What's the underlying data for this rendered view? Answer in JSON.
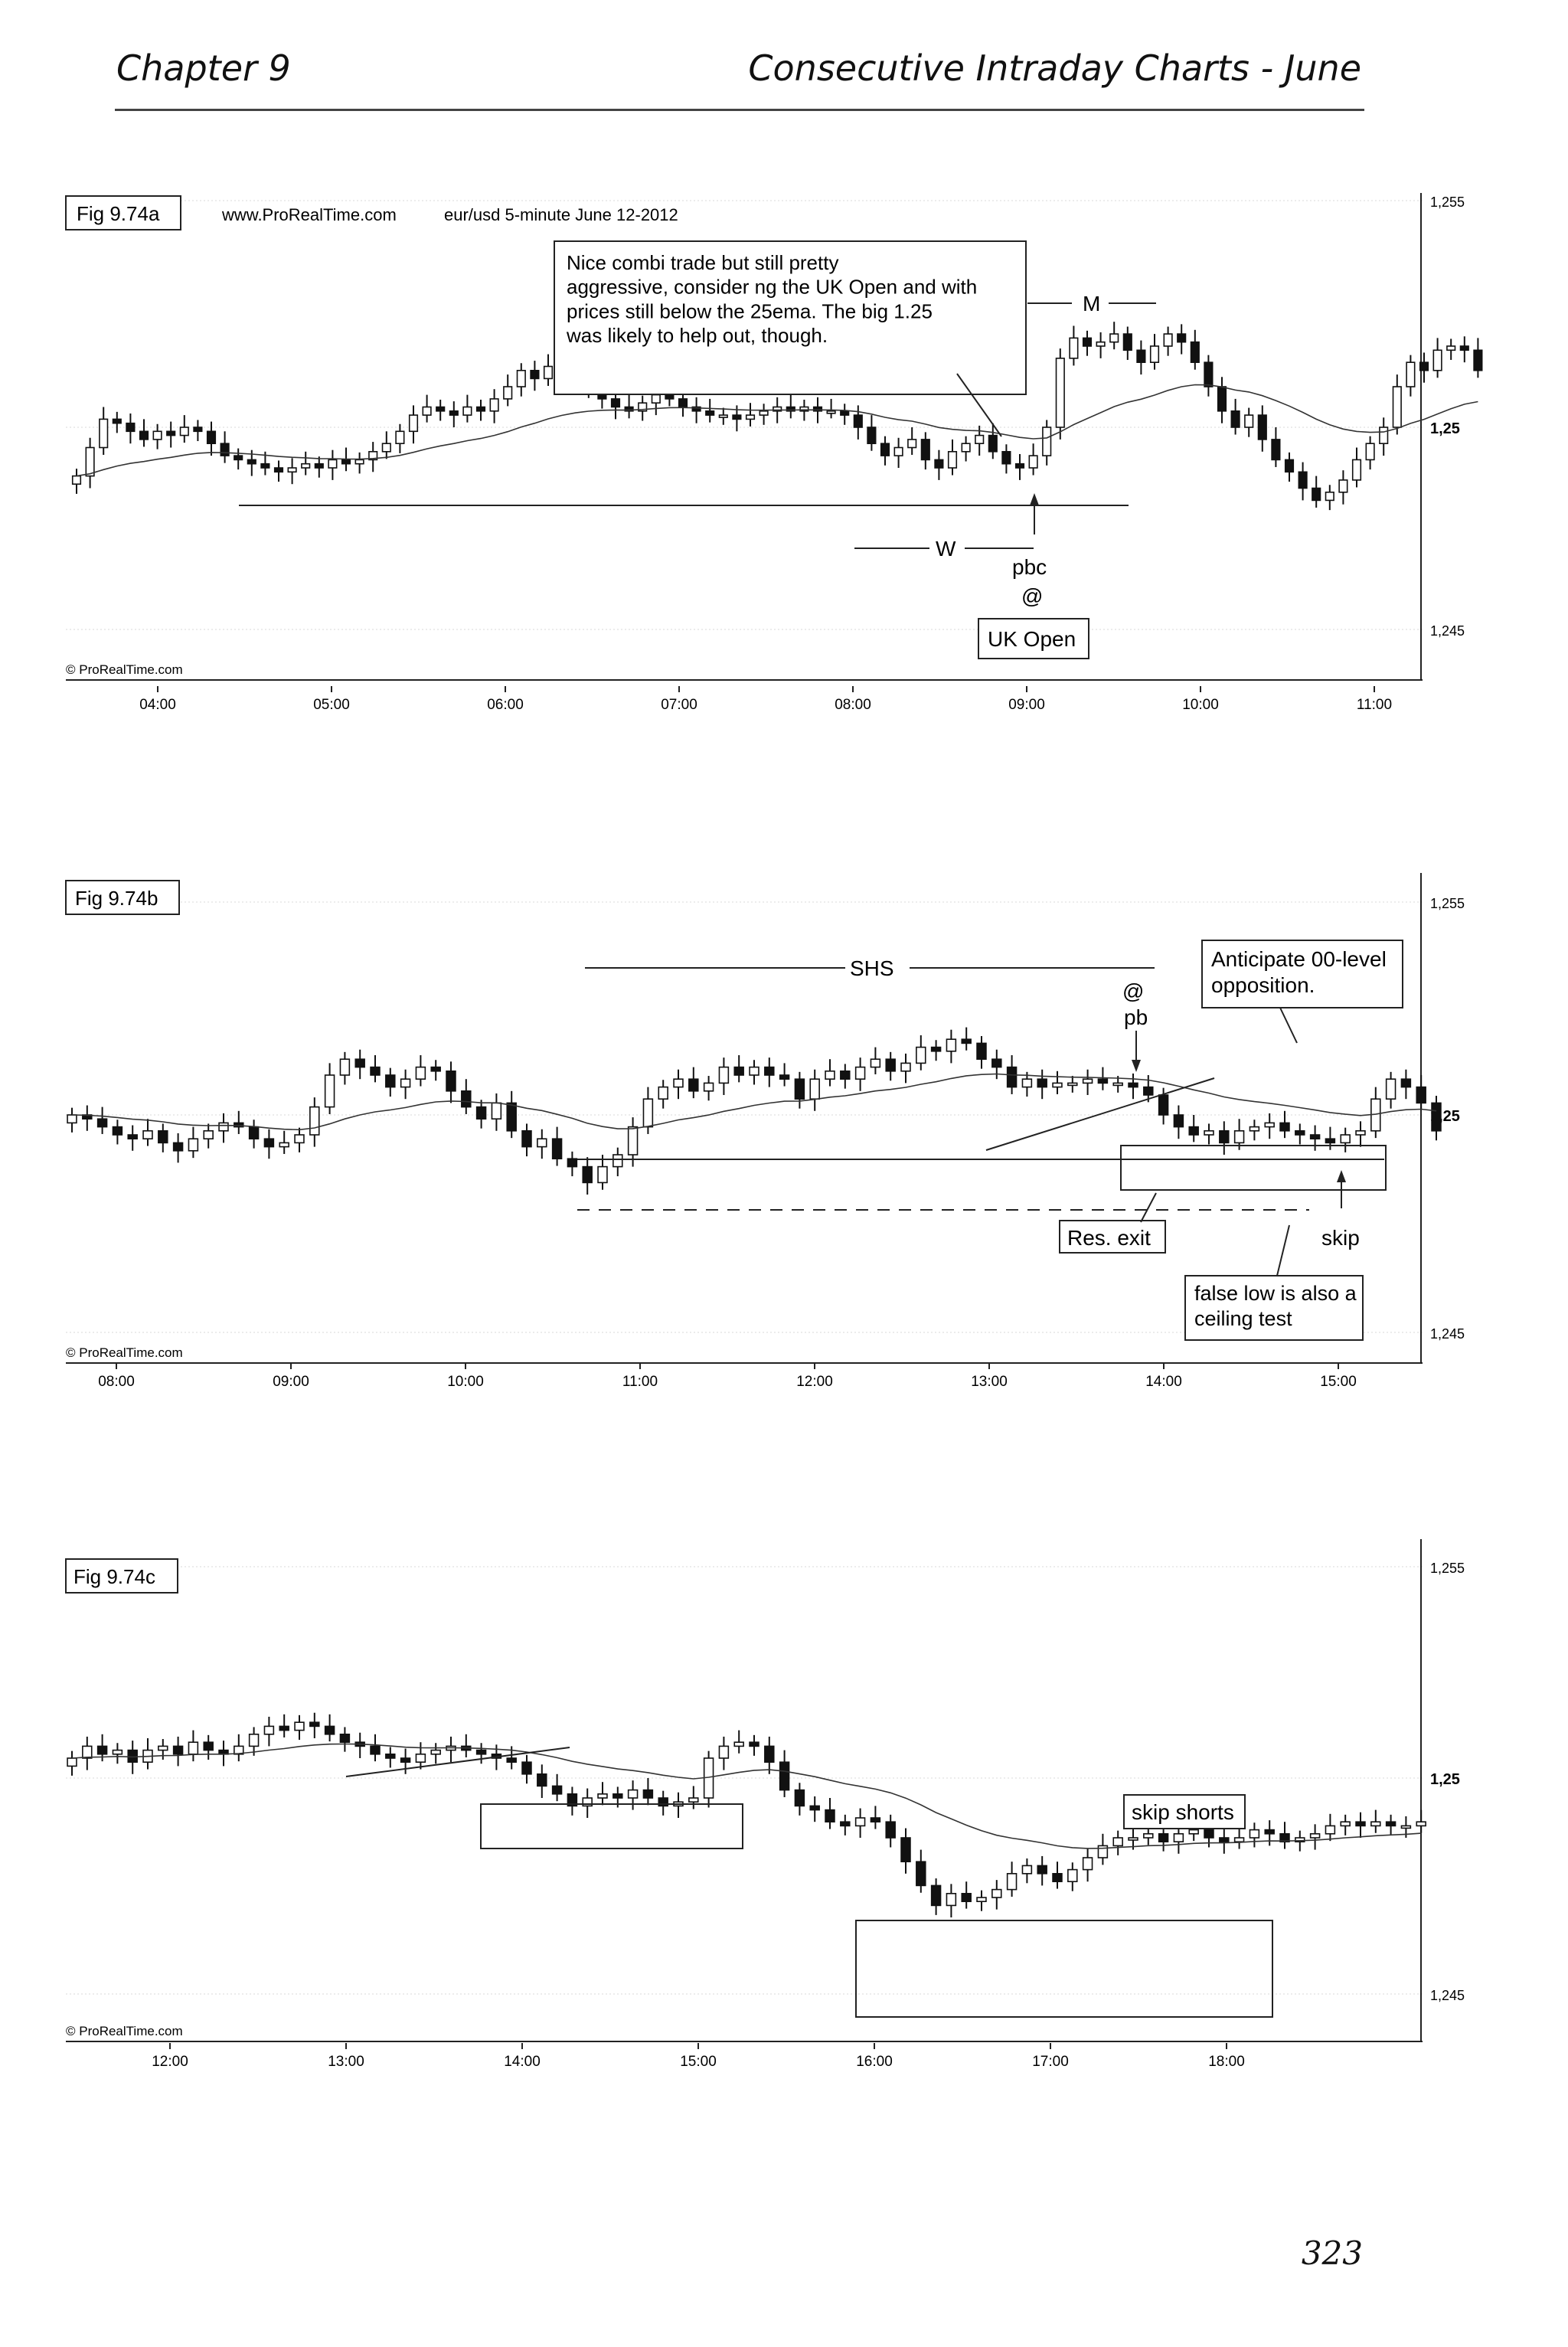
{
  "header": {
    "chapter": "Chapter 9",
    "title": "Consecutive Intraday Charts - June"
  },
  "page_number": "323",
  "chart_data": [
    {
      "type": "candlestick",
      "figure_label": "Fig 9.74a",
      "source": "www.ProRealTime.com",
      "subtitle": "eur/usd  5-minute  June 12-2012",
      "copyright": "© ProRealTime.com",
      "x_ticks": [
        "04:00",
        "05:00",
        "06:00",
        "07:00",
        "08:00",
        "09:00",
        "10:00",
        "11:00"
      ],
      "y_ticks": [
        "1,255",
        "1,25",
        "1,245"
      ],
      "ylim": [
        1.245,
        1.255
      ],
      "ema": "25ema",
      "closes": [
        1.2488,
        1.2495,
        1.2502,
        1.2501,
        1.2499,
        1.2497,
        1.2499,
        1.2498,
        1.25,
        1.2499,
        1.2496,
        1.2493,
        1.2492,
        1.2491,
        1.249,
        1.2489,
        1.249,
        1.2491,
        1.249,
        1.2492,
        1.2491,
        1.2492,
        1.2494,
        1.2496,
        1.2499,
        1.2503,
        1.2505,
        1.2504,
        1.2503,
        1.2505,
        1.2504,
        1.2507,
        1.251,
        1.2514,
        1.2512,
        1.2515,
        1.2513,
        1.2511,
        1.2509,
        1.2507,
        1.2505,
        1.2504,
        1.2506,
        1.2508,
        1.2507,
        1.2505,
        1.2504,
        1.2503,
        1.2503,
        1.2502,
        1.2503,
        1.2504,
        1.2505,
        1.2504,
        1.2505,
        1.2504,
        1.2504,
        1.2503,
        1.25,
        1.2496,
        1.2493,
        1.2495,
        1.2497,
        1.2492,
        1.249,
        1.2494,
        1.2496,
        1.2498,
        1.2494,
        1.2491,
        1.249,
        1.2493,
        1.25,
        1.2517,
        1.2522,
        1.252,
        1.2521,
        1.2523,
        1.2519,
        1.2516,
        1.252,
        1.2523,
        1.2521,
        1.2516,
        1.251,
        1.2504,
        1.25,
        1.2503,
        1.2497,
        1.2492,
        1.2489,
        1.2485,
        1.2482,
        1.2484,
        1.2487,
        1.2492,
        1.2496,
        1.25,
        1.251,
        1.2516,
        1.2514,
        1.2519,
        1.252,
        1.2519,
        1.2514
      ],
      "annotations": [
        "Nice combi trade but still pretty aggressive, consider ng the UK Open and with prices still below the 25ema. The big 1.25 was likely to help out, though.",
        "M",
        "W",
        "pbc",
        "@",
        "UK Open"
      ]
    },
    {
      "type": "candlestick",
      "figure_label": "Fig 9.74b",
      "copyright": "© ProRealTime.com",
      "x_ticks": [
        "08:00",
        "09:00",
        "10:00",
        "11:00",
        "12:00",
        "13:00",
        "14:00",
        "15:00"
      ],
      "y_ticks": [
        "1,255",
        "1,25",
        "1,245"
      ],
      "ylim": [
        1.245,
        1.255
      ],
      "closes": [
        1.25,
        1.2499,
        1.2497,
        1.2495,
        1.2494,
        1.2496,
        1.2493,
        1.2491,
        1.2494,
        1.2496,
        1.2498,
        1.2497,
        1.2494,
        1.2492,
        1.2493,
        1.2495,
        1.2502,
        1.251,
        1.2514,
        1.2512,
        1.251,
        1.2507,
        1.2509,
        1.2512,
        1.2511,
        1.2506,
        1.2502,
        1.2499,
        1.2503,
        1.2496,
        1.2492,
        1.2494,
        1.2489,
        1.2487,
        1.2483,
        1.2487,
        1.249,
        1.2497,
        1.2504,
        1.2507,
        1.2509,
        1.2506,
        1.2508,
        1.2512,
        1.251,
        1.2512,
        1.251,
        1.2509,
        1.2504,
        1.2509,
        1.2511,
        1.2509,
        1.2512,
        1.2514,
        1.2511,
        1.2513,
        1.2517,
        1.2516,
        1.2519,
        1.2518,
        1.2514,
        1.2512,
        1.2507,
        1.2509,
        1.2507,
        1.2508,
        1.2508,
        1.2509,
        1.2508,
        1.2508,
        1.2507,
        1.2505,
        1.25,
        1.2497,
        1.2495,
        1.2496,
        1.2493,
        1.2496,
        1.2497,
        1.2498,
        1.2496,
        1.2495,
        1.2494,
        1.2493,
        1.2495,
        1.2496,
        1.2504,
        1.2509,
        1.2507,
        1.2503,
        1.2496
      ],
      "annotations": [
        "SHS",
        "@",
        "pb",
        "Anticipate 00-level opposition.",
        "Res. exit",
        "skip",
        "false low is also a ceiling test"
      ]
    },
    {
      "type": "candlestick",
      "figure_label": "Fig 9.74c",
      "copyright": "© ProRealTime.com",
      "x_ticks": [
        "12:00",
        "13:00",
        "14:00",
        "15:00",
        "16:00",
        "17:00",
        "18:00"
      ],
      "y_ticks": [
        "1,255",
        "1,25",
        "1,245"
      ],
      "ylim": [
        1.245,
        1.255
      ],
      "closes": [
        1.2505,
        1.2508,
        1.2506,
        1.2507,
        1.2504,
        1.2507,
        1.2508,
        1.2506,
        1.2509,
        1.2507,
        1.2506,
        1.2508,
        1.2511,
        1.2513,
        1.2512,
        1.2514,
        1.2513,
        1.2511,
        1.2509,
        1.2508,
        1.2506,
        1.2505,
        1.2504,
        1.2506,
        1.2507,
        1.2508,
        1.2507,
        1.2506,
        1.2505,
        1.2504,
        1.2501,
        1.2498,
        1.2496,
        1.2493,
        1.2495,
        1.2496,
        1.2495,
        1.2497,
        1.2495,
        1.2493,
        1.2494,
        1.2495,
        1.2505,
        1.2508,
        1.2509,
        1.2508,
        1.2504,
        1.2497,
        1.2493,
        1.2492,
        1.2489,
        1.2488,
        1.249,
        1.2489,
        1.2485,
        1.2479,
        1.2473,
        1.2468,
        1.2471,
        1.2469,
        1.247,
        1.2472,
        1.2476,
        1.2478,
        1.2476,
        1.2474,
        1.2477,
        1.248,
        1.2483,
        1.2485,
        1.2485,
        1.2486,
        1.2484,
        1.2486,
        1.2487,
        1.2485,
        1.2484,
        1.2485,
        1.2487,
        1.2486,
        1.2484,
        1.2485,
        1.2486,
        1.2488,
        1.2489,
        1.2488,
        1.2489,
        1.2488,
        1.2488,
        1.2489
      ],
      "annotations": [
        "skip shorts"
      ]
    }
  ]
}
